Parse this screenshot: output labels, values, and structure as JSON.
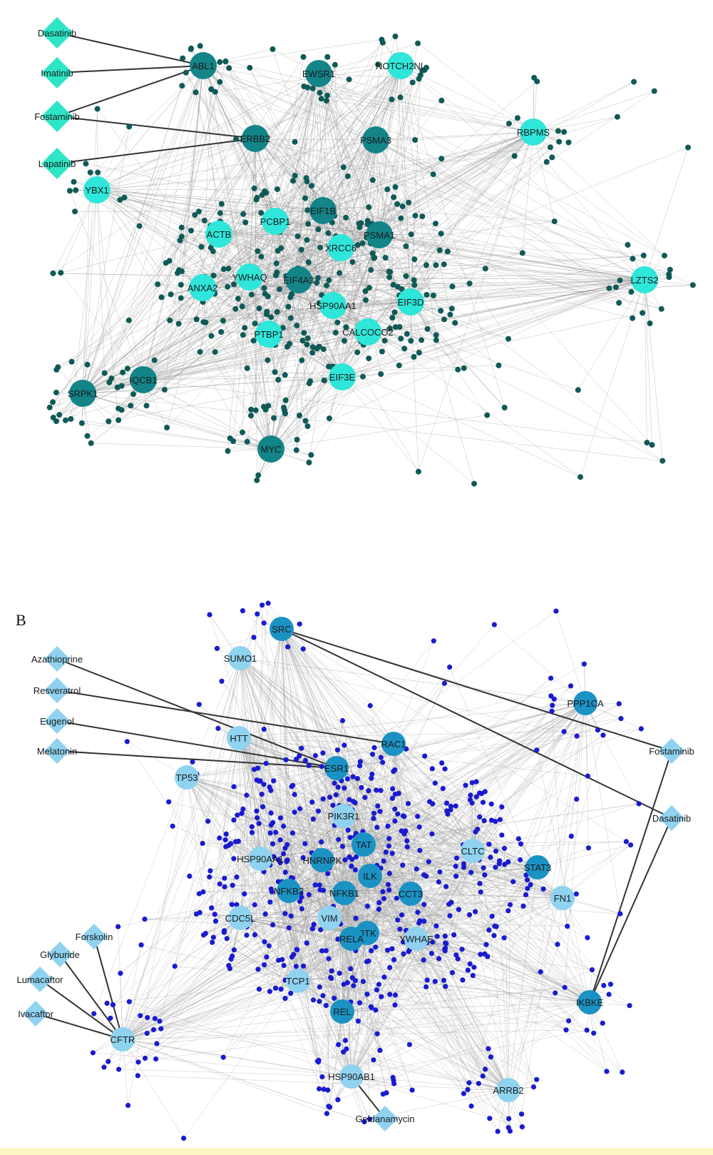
{
  "panel_a": {
    "letter": "",
    "colors": {
      "hub_dark": "#138488",
      "hub_light": "#2ee6d9",
      "leaf": "#0f5a57",
      "edge": "#8a8a8a",
      "drug": "#2ee6c6",
      "drug_edge": "#333333"
    },
    "drugs": [
      "Dasatinib",
      "Imatinib",
      "Fostaminib",
      "Lapatinib"
    ],
    "hubs": [
      {
        "label": "ABL1",
        "tone": "dark"
      },
      {
        "label": "EWSR1",
        "tone": "dark"
      },
      {
        "label": "NOTCH2NL",
        "tone": "light"
      },
      {
        "label": "ERBB2",
        "tone": "dark"
      },
      {
        "label": "PSMA3",
        "tone": "dark"
      },
      {
        "label": "RBPMS",
        "tone": "light"
      },
      {
        "label": "YBX1",
        "tone": "light"
      },
      {
        "label": "ACTB",
        "tone": "light"
      },
      {
        "label": "PCBP1",
        "tone": "light"
      },
      {
        "label": "EIF1B",
        "tone": "dark"
      },
      {
        "label": "XRCC6",
        "tone": "light"
      },
      {
        "label": "PSMA1",
        "tone": "dark"
      },
      {
        "label": "LZTS2",
        "tone": "light"
      },
      {
        "label": "ANXA2",
        "tone": "light"
      },
      {
        "label": "YWHAQ",
        "tone": "light"
      },
      {
        "label": "EIF4A3",
        "tone": "dark"
      },
      {
        "label": "HSP90AA1",
        "tone": "light"
      },
      {
        "label": "EIF3D",
        "tone": "light"
      },
      {
        "label": "PTBP1",
        "tone": "light"
      },
      {
        "label": "CALCOCO2",
        "tone": "light"
      },
      {
        "label": "SRPK1",
        "tone": "dark"
      },
      {
        "label": "IQCB1",
        "tone": "dark"
      },
      {
        "label": "EIF3E",
        "tone": "light"
      },
      {
        "label": "MYC",
        "tone": "dark"
      }
    ]
  },
  "panel_b": {
    "letter": "B",
    "colors": {
      "hub_dark": "#1b92c4",
      "hub_light": "#8fd3f0",
      "leaf": "#1a1ad0",
      "edge": "#9a9a9a",
      "drug": "#8fd3f0",
      "drug_edge": "#333333"
    },
    "drugs": [
      "Azathioprine",
      "Resveratrol",
      "Eugenol",
      "Melatonin",
      "Fostaminib",
      "Dasatinib",
      "Forskolin",
      "Glyburide",
      "Lumacaftor",
      "Ivacaftor",
      "Geldanamycin"
    ],
    "hubs": [
      {
        "label": "SRC",
        "tone": "dark"
      },
      {
        "label": "SUMO1",
        "tone": "light"
      },
      {
        "label": "PPP1CA",
        "tone": "dark"
      },
      {
        "label": "HTT",
        "tone": "light"
      },
      {
        "label": "RAC1",
        "tone": "dark"
      },
      {
        "label": "ESR1",
        "tone": "dark"
      },
      {
        "label": "TP53",
        "tone": "light"
      },
      {
        "label": "PIK3R1",
        "tone": "light"
      },
      {
        "label": "TAT",
        "tone": "dark"
      },
      {
        "label": "CLTC",
        "tone": "light"
      },
      {
        "label": "HSP90AA1",
        "tone": "light"
      },
      {
        "label": "HNRNPK",
        "tone": "dark"
      },
      {
        "label": "STAT3",
        "tone": "dark"
      },
      {
        "label": "ILK",
        "tone": "dark"
      },
      {
        "label": "NFKB2",
        "tone": "dark"
      },
      {
        "label": "NFKB1",
        "tone": "dark"
      },
      {
        "label": "CCT3",
        "tone": "dark"
      },
      {
        "label": "FN1",
        "tone": "light"
      },
      {
        "label": "CDC5L",
        "tone": "light"
      },
      {
        "label": "VIM",
        "tone": "light"
      },
      {
        "label": "BTK",
        "tone": "dark"
      },
      {
        "label": "RELA",
        "tone": "dark"
      },
      {
        "label": "YWHAE",
        "tone": "light"
      },
      {
        "label": "TCP1",
        "tone": "light"
      },
      {
        "label": "REL",
        "tone": "dark"
      },
      {
        "label": "IKBKE",
        "tone": "dark"
      },
      {
        "label": "CFTR",
        "tone": "light"
      },
      {
        "label": "HSP90AB1",
        "tone": "light"
      },
      {
        "label": "ARRB2",
        "tone": "light"
      }
    ]
  }
}
